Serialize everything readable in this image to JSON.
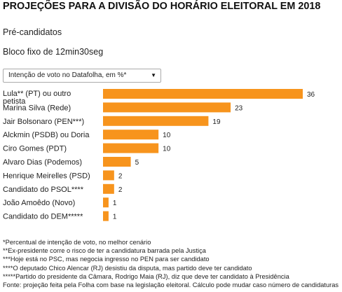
{
  "header": {
    "title": "PROJEÇÕES PARA A DIVISÃO DO HORÁRIO ELEITORAL EM 2018",
    "subtitle": "Pré-candidatos",
    "bloco": "Bloco fixo de 12min30seg"
  },
  "dropdown": {
    "selected": "Intenção de voto no Datafolha, em %*",
    "icon": "chevron-down-icon"
  },
  "colors": {
    "bar": "#f7941d",
    "text": "#222222"
  },
  "chart_data": {
    "type": "bar",
    "orientation": "horizontal",
    "categories": [
      "Lula** (PT) ou outro petista",
      "Marina Silva (Rede)",
      "Jair Bolsonaro (PEN***)",
      "Alckmin (PSDB) ou Doria",
      "Ciro Gomes (PDT)",
      "Alvaro Dias (Podemos)",
      "Henrique Meirelles (PSD)",
      "Candidato do PSOL****",
      "João Amoêdo (Novo)",
      "Candidato do DEM*****"
    ],
    "values": [
      36,
      23,
      19,
      10,
      10,
      5,
      2,
      2,
      1,
      1
    ],
    "xlim": [
      0,
      36
    ],
    "grid": false,
    "legend": "none"
  },
  "notes": [
    "*Percentual de intenção de voto, no melhor cenário",
    "**Ex-presidente corre o risco de ter a candidatura barrada pela Justiça",
    "***Hoje está no PSC, mas negocia ingresso no PEN para ser candidato",
    "****O deputado Chico Alencar (RJ) desistiu da disputa, mas partido deve ter candidato",
    "*****Partido do presidente da Câmara, Rodrigo Maia (RJ), diz que deve ter candidato à Presidência",
    "Fonte: projeção feita pela Folha com base na legislação eleitoral. Cálculo pode mudar caso número de candidaturas"
  ]
}
